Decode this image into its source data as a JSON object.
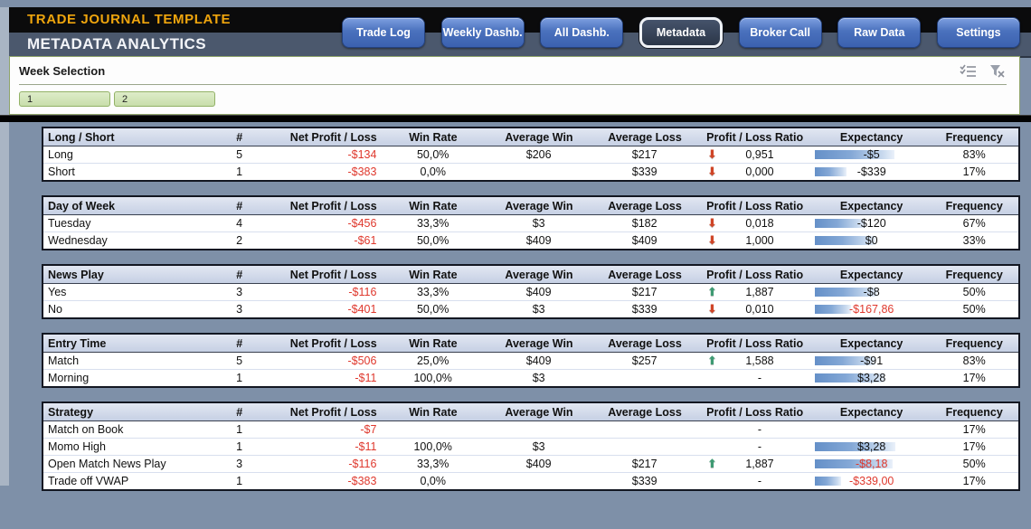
{
  "header": {
    "app_title": "TRADE JOURNAL TEMPLATE",
    "page_title": "METADATA ANALYTICS",
    "nav": [
      {
        "label": "Trade Log",
        "active": false
      },
      {
        "label": "Weekly Dashb.",
        "active": false
      },
      {
        "label": "All Dashb.",
        "active": false
      },
      {
        "label": "Metadata",
        "active": true
      },
      {
        "label": "Broker Call",
        "active": false
      },
      {
        "label": "Raw Data",
        "active": false
      },
      {
        "label": "Settings",
        "active": false
      }
    ]
  },
  "slicer": {
    "title": "Week Selection",
    "items": [
      {
        "label": "1"
      },
      {
        "label": "2"
      }
    ],
    "icons": [
      "multi-select-icon",
      "clear-filter-icon"
    ]
  },
  "columns": [
    "#",
    "Net Profit / Loss",
    "Win Rate",
    "Average Win",
    "Average Loss",
    "Profit / Loss Ratio",
    "Expectancy",
    "Frequency"
  ],
  "tables": [
    {
      "title": "Long / Short",
      "rows": [
        {
          "label": "Long",
          "count": "5",
          "net_pl": "-$134",
          "win_rate": "50,0%",
          "avg_win": "$206",
          "avg_loss": "$217",
          "arrow": "down",
          "ratio": "0,951",
          "expectancy": "-$5",
          "exp_red": false,
          "bar": 0.92,
          "frequency": "83%"
        },
        {
          "label": "Short",
          "count": "1",
          "net_pl": "-$383",
          "win_rate": "0,0%",
          "avg_win": "",
          "avg_loss": "$339",
          "arrow": "down",
          "ratio": "0,000",
          "expectancy": "-$339",
          "exp_red": false,
          "bar": 0.37,
          "frequency": "17%"
        }
      ]
    },
    {
      "title": "Day of Week",
      "rows": [
        {
          "label": "Tuesday",
          "count": "4",
          "net_pl": "-$456",
          "win_rate": "33,3%",
          "avg_win": "$3",
          "avg_loss": "$182",
          "arrow": "down",
          "ratio": "0,018",
          "expectancy": "-$120",
          "exp_red": false,
          "bar": 0.58,
          "frequency": "67%"
        },
        {
          "label": "Wednesday",
          "count": "2",
          "net_pl": "-$61",
          "win_rate": "50,0%",
          "avg_win": "$409",
          "avg_loss": "$409",
          "arrow": "down",
          "ratio": "1,000",
          "expectancy": "$0",
          "exp_red": false,
          "bar": 0.7,
          "frequency": "33%"
        }
      ]
    },
    {
      "title": "News Play",
      "rows": [
        {
          "label": "Yes",
          "count": "3",
          "net_pl": "-$116",
          "win_rate": "33,3%",
          "avg_win": "$409",
          "avg_loss": "$217",
          "arrow": "up",
          "ratio": "1,887",
          "expectancy": "-$8",
          "exp_red": false,
          "bar": 0.72,
          "frequency": "50%"
        },
        {
          "label": "No",
          "count": "3",
          "net_pl": "-$401",
          "win_rate": "50,0%",
          "avg_win": "$3",
          "avg_loss": "$339",
          "arrow": "down",
          "ratio": "0,010",
          "expectancy": "-$167,86",
          "exp_red": true,
          "bar": 0.42,
          "frequency": "50%"
        }
      ]
    },
    {
      "title": "Entry Time",
      "rows": [
        {
          "label": "Match",
          "count": "5",
          "net_pl": "-$506",
          "win_rate": "25,0%",
          "avg_win": "$409",
          "avg_loss": "$257",
          "arrow": "up",
          "ratio": "1,588",
          "expectancy": "-$91",
          "exp_red": false,
          "bar": 0.7,
          "frequency": "83%"
        },
        {
          "label": "Morning",
          "count": "1",
          "net_pl": "-$11",
          "win_rate": "100,0%",
          "avg_win": "$3",
          "avg_loss": "",
          "arrow": "none",
          "ratio": "-",
          "expectancy": "$3,28",
          "exp_red": false,
          "bar": 0.8,
          "frequency": "17%"
        }
      ]
    },
    {
      "title": "Strategy",
      "rows": [
        {
          "label": "Match on Book",
          "count": "1",
          "net_pl": "-$7",
          "win_rate": "",
          "avg_win": "",
          "avg_loss": "",
          "arrow": "none",
          "ratio": "-",
          "expectancy": "",
          "exp_red": false,
          "bar": 0,
          "frequency": "17%"
        },
        {
          "label": "Momo High",
          "count": "1",
          "net_pl": "-$11",
          "win_rate": "100,0%",
          "avg_win": "$3",
          "avg_loss": "",
          "arrow": "none",
          "ratio": "-",
          "expectancy": "$3,28",
          "exp_red": false,
          "bar": 0.93,
          "frequency": "17%"
        },
        {
          "label": "Open Match News Play",
          "count": "3",
          "net_pl": "-$116",
          "win_rate": "33,3%",
          "avg_win": "$409",
          "avg_loss": "$217",
          "arrow": "up",
          "ratio": "1,887",
          "expectancy": "-$8,18",
          "exp_red": true,
          "bar": 0.9,
          "frequency": "50%"
        },
        {
          "label": "Trade off VWAP",
          "count": "1",
          "net_pl": "-$383",
          "win_rate": "0,0%",
          "avg_win": "",
          "avg_loss": "$339",
          "arrow": "none",
          "ratio": "-",
          "expectancy": "-$339,00",
          "exp_red": true,
          "bar": 0.3,
          "frequency": "17%"
        }
      ]
    }
  ],
  "colors": {
    "page_background": "#7e90a8",
    "title_orange": "#efa50d",
    "button_blue": "#4a71bd",
    "slicer_green": "#cfe3b3",
    "databar_blue": "#638ec6",
    "negative_red": "#df382d",
    "arrow_green": "#3f9a73",
    "arrow_red": "#cf4527"
  }
}
